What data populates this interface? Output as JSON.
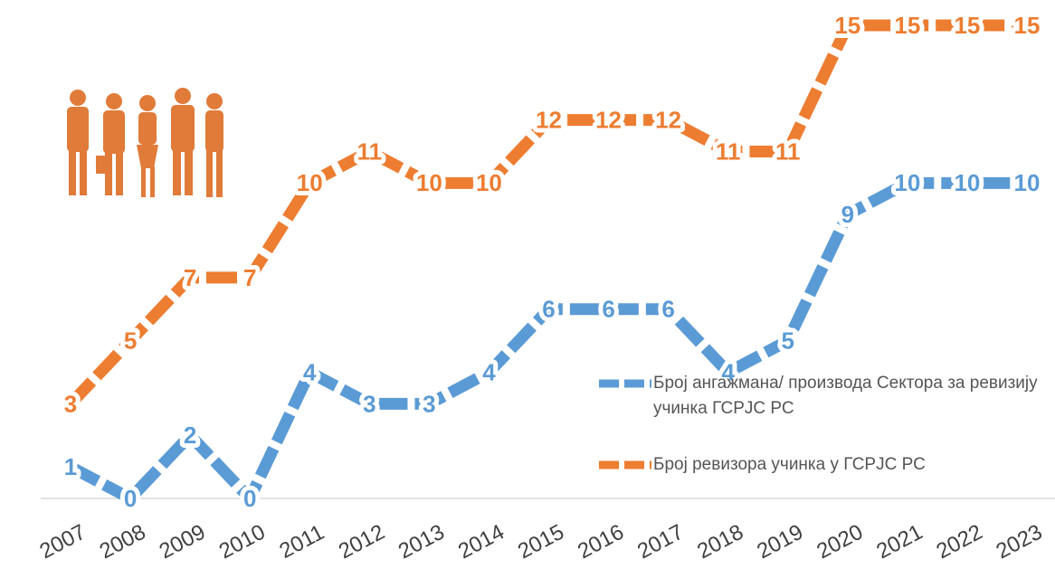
{
  "chart_data": {
    "type": "line",
    "categories": [
      "2007",
      "2008",
      "2009",
      "2010",
      "2011",
      "2012",
      "2013",
      "2014",
      "2015",
      "2016",
      "2017",
      "2018",
      "2019",
      "2020",
      "2021",
      "2022",
      "2023"
    ],
    "series": [
      {
        "name": "Број ангажмана/ производа Сектора за ревизију учинка ГСРЈС РС",
        "color": "#5b9bd5",
        "values": [
          1,
          0,
          2,
          0,
          4,
          3,
          3,
          4,
          6,
          6,
          6,
          4,
          5,
          9,
          10,
          10,
          10
        ]
      },
      {
        "name": "Број ревизора учинка у ГСРЈС РС",
        "color": "#ed7d31",
        "values": [
          3,
          5,
          7,
          7,
          10,
          11,
          10,
          10,
          12,
          12,
          12,
          11,
          11,
          15,
          15,
          15,
          15
        ]
      }
    ]
  }
}
